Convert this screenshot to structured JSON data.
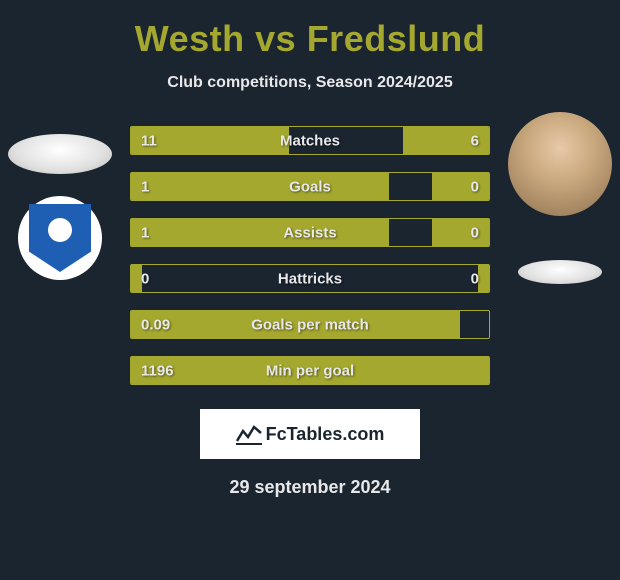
{
  "title": "Westh vs Fredslund",
  "subtitle": "Club competitions, Season 2024/2025",
  "accent_color": "#a5a82f",
  "background_color": "#1a2530",
  "text_color": "#e8e8e8",
  "bars": [
    {
      "label": "Matches",
      "left_val": "11",
      "right_val": "6",
      "left_pct": 44,
      "right_pct": 24
    },
    {
      "label": "Goals",
      "left_val": "1",
      "right_val": "0",
      "left_pct": 72,
      "right_pct": 16
    },
    {
      "label": "Assists",
      "left_val": "1",
      "right_val": "0",
      "left_pct": 72,
      "right_pct": 16
    },
    {
      "label": "Hattricks",
      "left_val": "0",
      "right_val": "0",
      "left_pct": 3,
      "right_pct": 3
    },
    {
      "label": "Goals per match",
      "left_val": "0.09",
      "right_val": "",
      "left_pct": 92,
      "right_pct": 0
    },
    {
      "label": "Min per goal",
      "left_val": "1196",
      "right_val": "",
      "left_pct": 100,
      "right_pct": 0
    }
  ],
  "brand": "FcTables.com",
  "date": "29 september 2024"
}
